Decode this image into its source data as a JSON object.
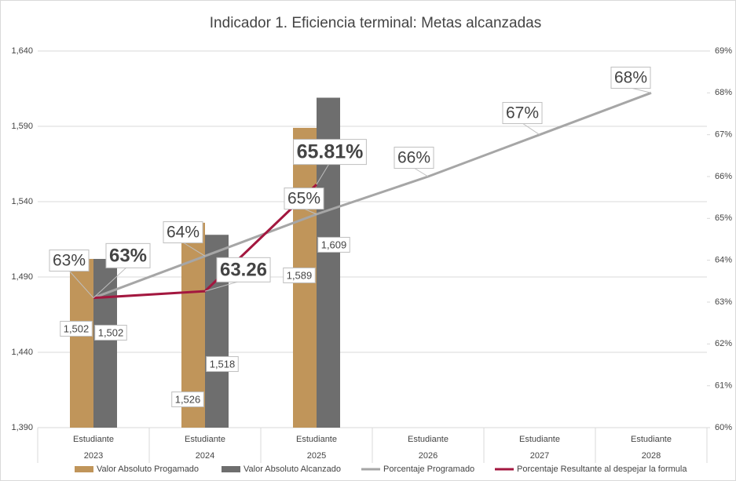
{
  "chart_data": {
    "type": "bar-line",
    "title": "Indicador 1. Eficiencia terminal: Metas alcanzadas",
    "categories": [
      "Estudiante",
      "Estudiante",
      "Estudiante",
      "Estudiante",
      "Estudiante",
      "Estudiante"
    ],
    "category_groups": [
      "2023",
      "2024",
      "2025",
      "2026",
      "2027",
      "2028"
    ],
    "ylim": [
      1390,
      1640
    ],
    "yticks": [
      {
        "value": 1390,
        "label": "1,390"
      },
      {
        "value": 1440,
        "label": "1,440"
      },
      {
        "value": 1490,
        "label": "1,490"
      },
      {
        "value": 1540,
        "label": "1,540"
      },
      {
        "value": 1590,
        "label": "1,590"
      },
      {
        "value": 1640,
        "label": "1,640"
      }
    ],
    "y2lim": [
      60,
      69
    ],
    "y2ticks": [
      {
        "value": 60,
        "label": "60%"
      },
      {
        "value": 61,
        "label": "61%"
      },
      {
        "value": 62,
        "label": "62%"
      },
      {
        "value": 63,
        "label": "63%"
      },
      {
        "value": 64,
        "label": "64%"
      },
      {
        "value": 65,
        "label": "65%"
      },
      {
        "value": 66,
        "label": "66%"
      },
      {
        "value": 67,
        "label": "67%"
      },
      {
        "value": 68,
        "label": "68%"
      },
      {
        "value": 69,
        "label": "69%"
      }
    ],
    "grid": true,
    "legend": "bottom",
    "series": [
      {
        "name": "Valor Absoluto Progamado",
        "kind": "bar",
        "color": "#c0955a",
        "values": [
          1502,
          1526,
          1589,
          null,
          null,
          null
        ],
        "value_labels": [
          "1,502",
          "1,526",
          "1,589",
          null,
          null,
          null
        ]
      },
      {
        "name": "Valor Absoluto Alcanzado",
        "kind": "bar",
        "color": "#6e6e6e",
        "values": [
          1502,
          1518,
          1609,
          null,
          null,
          null
        ],
        "value_labels": [
          "1,502",
          "1,518",
          "1,609",
          null,
          null,
          null
        ]
      },
      {
        "name": "Porcentaje Programado",
        "kind": "line",
        "axis": "y2",
        "color": "#a6a6a6",
        "values": [
          63.1,
          64.1,
          65.1,
          66.0,
          67.0,
          68.0
        ],
        "value_labels": [
          "63%",
          "64%",
          "65%",
          "66%",
          "67%",
          "68%"
        ]
      },
      {
        "name": "Porcentaje Resultante al despejar la formula",
        "kind": "line",
        "axis": "y2",
        "color": "#a3173f",
        "values": [
          63.1,
          63.26,
          65.81,
          null,
          null,
          null
        ],
        "value_labels": [
          "63%",
          "63.26",
          "65.81%",
          null,
          null,
          null
        ]
      }
    ]
  }
}
